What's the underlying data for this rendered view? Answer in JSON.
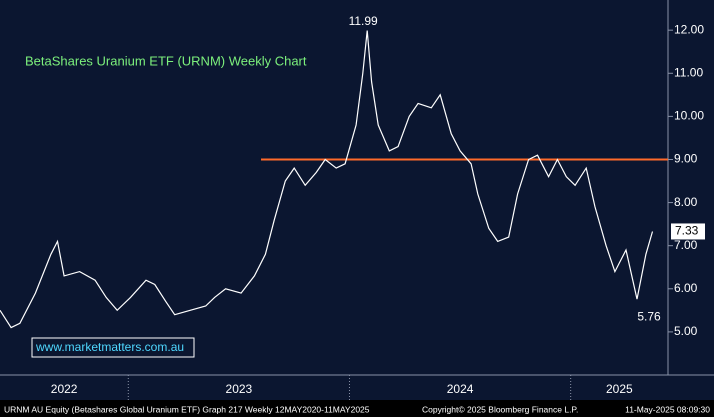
{
  "chart_data": {
    "type": "line",
    "title": "BetaShares Uranium ETF (URNM) Weekly Chart",
    "watermark": "www.marketmatters.com.au",
    "x": [
      2022.42,
      2022.47,
      2022.51,
      2022.58,
      2022.65,
      2022.68,
      2022.71,
      2022.78,
      2022.85,
      2022.9,
      2022.95,
      2023.01,
      2023.08,
      2023.12,
      2023.17,
      2023.21,
      2023.28,
      2023.35,
      2023.39,
      2023.44,
      2023.51,
      2023.57,
      2023.62,
      2023.66,
      2023.71,
      2023.75,
      2023.8,
      2023.85,
      2023.89,
      2023.94,
      2023.98,
      2024.03,
      2024.06,
      2024.08,
      2024.1,
      2024.13,
      2024.18,
      2024.22,
      2024.27,
      2024.31,
      2024.37,
      2024.41,
      2024.46,
      2024.5,
      2024.55,
      2024.58,
      2024.63,
      2024.67,
      2024.72,
      2024.76,
      2024.81,
      2024.85,
      2024.9,
      2024.94,
      2024.98,
      2025.02,
      2025.07,
      2025.11,
      2025.16,
      2025.2,
      2025.25,
      2025.3,
      2025.34,
      2025.37
    ],
    "series": [
      {
        "name": "URNM AU Equity",
        "color": "#ffffff",
        "values": [
          5.5,
          5.1,
          5.2,
          5.9,
          6.8,
          7.1,
          6.3,
          6.4,
          6.2,
          5.8,
          5.5,
          5.8,
          6.2,
          6.1,
          5.7,
          5.4,
          5.5,
          5.6,
          5.8,
          6.0,
          5.9,
          6.3,
          6.8,
          7.6,
          8.5,
          8.8,
          8.4,
          8.7,
          9.0,
          8.8,
          8.9,
          9.8,
          11.0,
          11.99,
          10.8,
          9.8,
          9.2,
          9.3,
          10.0,
          10.3,
          10.2,
          10.5,
          9.6,
          9.2,
          8.9,
          8.2,
          7.4,
          7.1,
          7.2,
          8.2,
          9.0,
          9.1,
          8.6,
          9.0,
          8.6,
          8.4,
          8.8,
          7.9,
          7.0,
          6.4,
          6.9,
          5.76,
          6.8,
          7.33
        ]
      }
    ],
    "xlim": [
      2022.42,
      2025.44
    ],
    "xticks": [
      2023,
      2024,
      2025
    ],
    "x_period_labels": [
      "2022",
      "2023",
      "2024",
      "2025"
    ],
    "ylim": [
      4.0,
      12.7
    ],
    "yticks": [
      {
        "value": 5,
        "label": "5.00"
      },
      {
        "value": 6,
        "label": "6.00"
      },
      {
        "value": 7,
        "label": "7.00"
      },
      {
        "value": 8,
        "label": "8.00"
      },
      {
        "value": 9,
        "label": "9.00"
      },
      {
        "value": 10,
        "label": "10.00"
      },
      {
        "value": 11,
        "label": "11.00"
      },
      {
        "value": 12,
        "label": "12.00"
      }
    ],
    "reference_line": {
      "value": 9.0,
      "color": "#ff6a2a",
      "x_start": 2023.6
    },
    "annotations": [
      {
        "text": "11.99",
        "value": 11.99
      },
      {
        "text": "5.76",
        "value": 5.76
      }
    ],
    "last_value_label": "7.33",
    "footer": {
      "left": "URNM AU Equity (Betashares Global Uranium ETF) Graph 217  Weekly 12MAY2020-11MAY2025",
      "center": "Copyright© 2025 Bloomberg Finance L.P.",
      "right": "11-May-2025 08:09:30"
    }
  }
}
